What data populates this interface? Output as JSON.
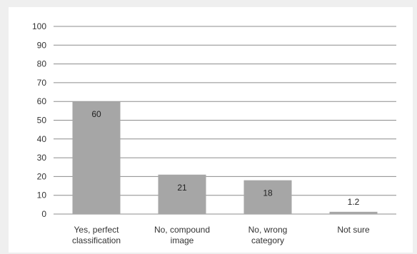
{
  "chart_data": {
    "type": "bar",
    "categories": [
      [
        "Yes, perfect",
        "classification"
      ],
      [
        "No, compound",
        "image"
      ],
      [
        "No, wrong",
        "category"
      ],
      [
        "Not sure"
      ]
    ],
    "values": [
      60,
      21,
      18,
      1.2
    ],
    "data_labels": [
      "60",
      "21",
      "18",
      "1.2"
    ],
    "yticks": [
      "0",
      "10",
      "20",
      "30",
      "40",
      "50",
      "60",
      "70",
      "80",
      "90",
      "100"
    ],
    "ylim": [
      0,
      100
    ],
    "ystep": 10,
    "grid": true,
    "legend": "none",
    "colors": {
      "bar": "#a6a6a6",
      "grid": "#8c8c8c",
      "text": "#333333"
    }
  }
}
